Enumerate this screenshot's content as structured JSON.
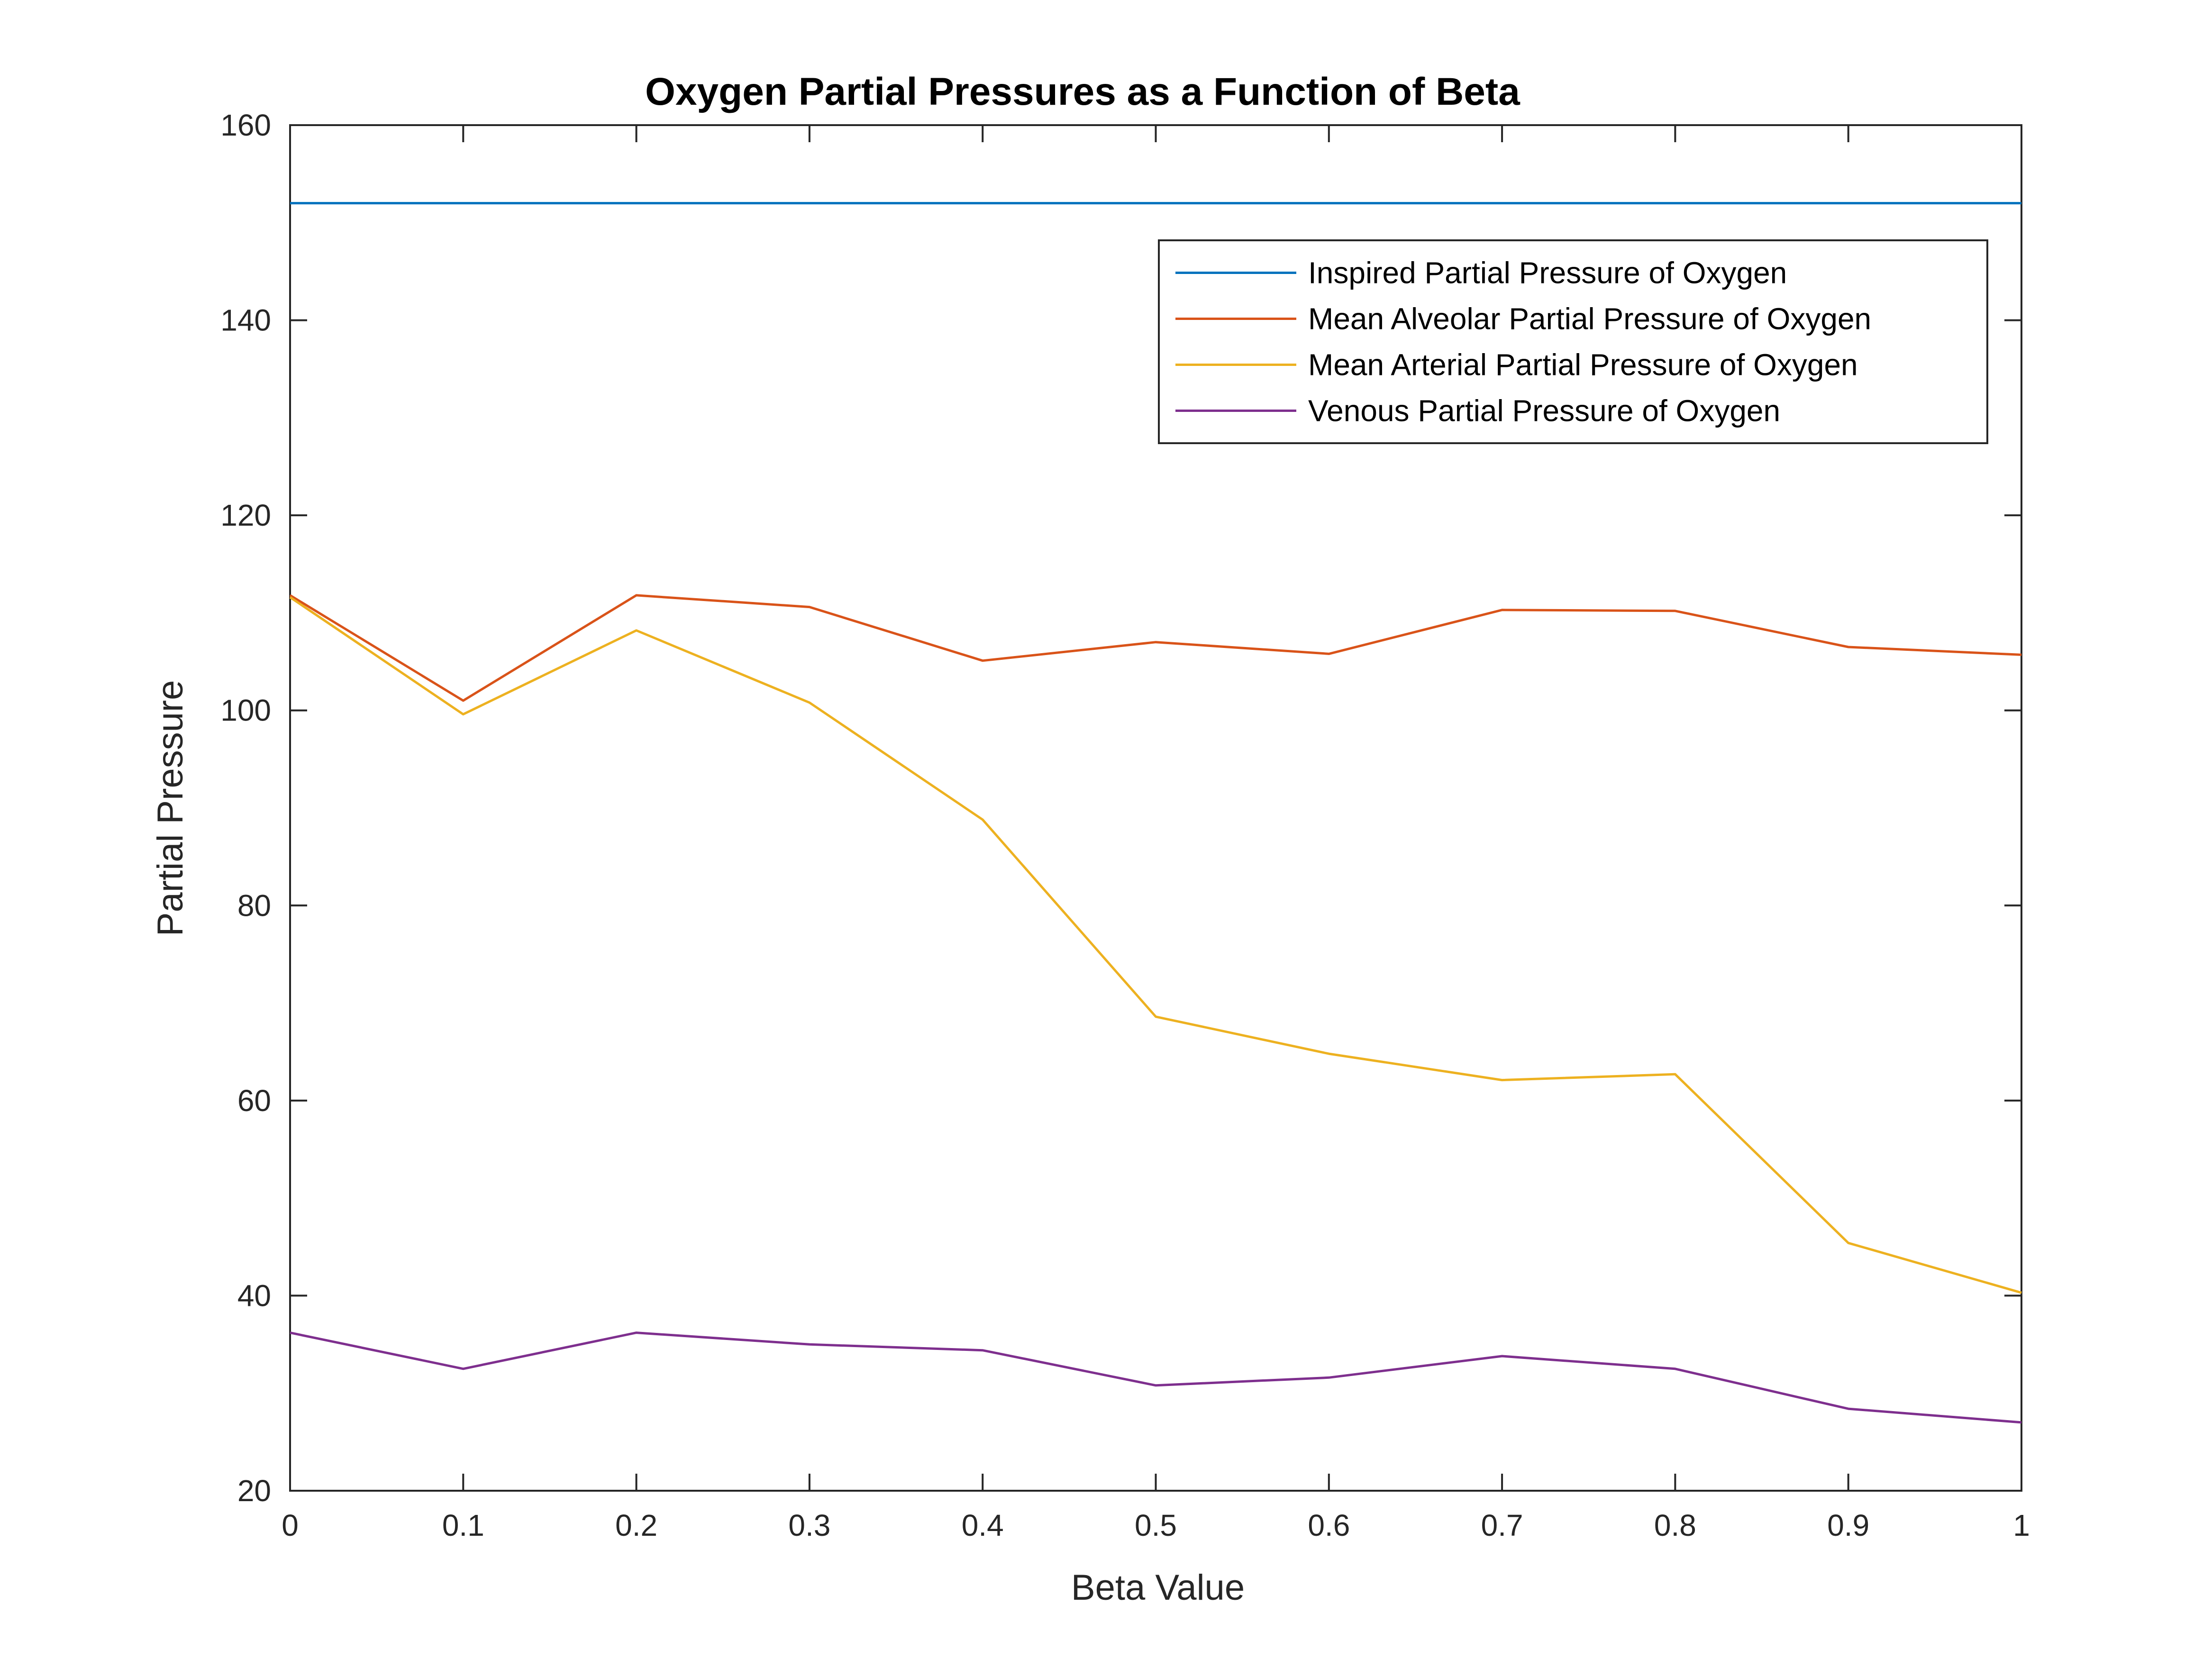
{
  "chart_data": {
    "type": "line",
    "title": "Oxygen Partial Pressures as a Function of Beta",
    "xlabel": "Beta Value",
    "ylabel": "Partial Pressure",
    "xlim": [
      0,
      1
    ],
    "ylim": [
      20,
      160
    ],
    "x_ticks": [
      0,
      0.1,
      0.2,
      0.3,
      0.4,
      0.5,
      0.6,
      0.7,
      0.8,
      0.9,
      1
    ],
    "x_tick_labels": [
      "0",
      "0.1",
      "0.2",
      "0.3",
      "0.4",
      "0.5",
      "0.6",
      "0.7",
      "0.8",
      "0.9",
      "1"
    ],
    "y_ticks": [
      20,
      40,
      60,
      80,
      100,
      120,
      140,
      160
    ],
    "y_tick_labels": [
      "20",
      "40",
      "60",
      "80",
      "100",
      "120",
      "140",
      "160"
    ],
    "grid": false,
    "legend_position": "top-right",
    "x": [
      0,
      0.1,
      0.2,
      0.3,
      0.4,
      0.5,
      0.6,
      0.7,
      0.8,
      0.9,
      1
    ],
    "series": [
      {
        "name": "Inspired Partial Pressure of Oxygen",
        "color": "#0072BD",
        "values": [
          152,
          152,
          152,
          152,
          152,
          152,
          152,
          152,
          152,
          152,
          152
        ]
      },
      {
        "name": "Mean Alveolar Partial Pressure of Oxygen",
        "color": "#D95319",
        "values": [
          111.8,
          101.0,
          111.8,
          110.6,
          105.1,
          107.0,
          105.8,
          110.3,
          110.2,
          106.5,
          105.7
        ]
      },
      {
        "name": "Mean Arterial Partial Pressure of Oxygen",
        "color": "#EDB120",
        "values": [
          111.6,
          99.6,
          108.2,
          100.8,
          88.8,
          68.6,
          64.8,
          62.1,
          62.7,
          45.4,
          40.3
        ]
      },
      {
        "name": "Venous Partial Pressure of Oxygen",
        "color": "#7E2F8E",
        "values": [
          36.2,
          32.5,
          36.2,
          35.0,
          34.4,
          30.8,
          31.6,
          33.8,
          32.5,
          28.4,
          27.0
        ]
      }
    ]
  }
}
